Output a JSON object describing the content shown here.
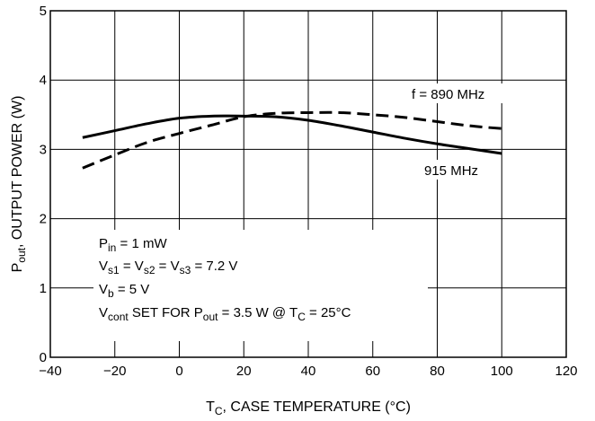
{
  "chart_data": {
    "type": "line",
    "xlabel": {
      "main": "T",
      "sub": "C",
      "rest": ", CASE TEMPERATURE (°C)"
    },
    "ylabel": {
      "main": "P",
      "sub": "out",
      "rest": ", OUTPUT POWER (W)"
    },
    "xlim": [
      -40,
      120
    ],
    "ylim": [
      0,
      5
    ],
    "xticks": [
      -40,
      -20,
      0,
      20,
      40,
      60,
      80,
      100,
      120
    ],
    "yticks": [
      0,
      1,
      2,
      3,
      4,
      5
    ],
    "grid": true,
    "series": [
      {
        "name": "f = 890 MHz",
        "style": "dashed",
        "x": [
          -30,
          -20,
          -10,
          0,
          10,
          20,
          30,
          40,
          50,
          60,
          70,
          80,
          90,
          100
        ],
        "y": [
          2.73,
          2.92,
          3.1,
          3.23,
          3.35,
          3.47,
          3.52,
          3.53,
          3.53,
          3.5,
          3.46,
          3.4,
          3.34,
          3.3
        ]
      },
      {
        "name": "915 MHz",
        "style": "solid",
        "x": [
          -30,
          -20,
          -10,
          0,
          10,
          20,
          30,
          40,
          50,
          60,
          70,
          80,
          90,
          100
        ],
        "y": [
          3.17,
          3.27,
          3.37,
          3.45,
          3.48,
          3.48,
          3.47,
          3.42,
          3.34,
          3.25,
          3.16,
          3.08,
          3.01,
          2.94
        ]
      }
    ],
    "annotations": {
      "pin": {
        "main": "P",
        "sub": "in",
        "rest": " = 1 mW"
      },
      "vs": {
        "p1": "V",
        "s1": "s1",
        "p2": " = V",
        "s2": "s2",
        "p3": " = V",
        "s3": "s3",
        "p4": " = 7.2 V"
      },
      "vb": {
        "main": "V",
        "sub": "b",
        "rest": " = 5 V"
      },
      "vcont": {
        "p1": "V",
        "s1": "cont",
        "p2": " SET FOR P",
        "s2": "out",
        "p3": " = 3.5 W @ T",
        "s3": "C",
        "p4": " = 25°C"
      }
    }
  }
}
